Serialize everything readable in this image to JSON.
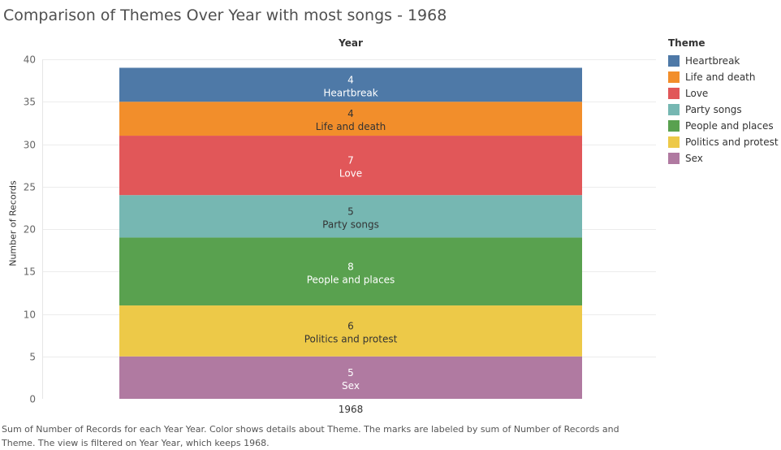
{
  "title": "Comparison of Themes Over Year with most songs - 1968",
  "caption": "Sum of Number of Records for each Year Year.  Color shows details about Theme.  The marks are labeled by sum of Number of Records and Theme. The view is filtered on Year Year, which keeps 1968.",
  "chart_data": {
    "type": "bar",
    "stacked": true,
    "column_header": "Year",
    "categories": [
      "1968"
    ],
    "ylabel": "Number of Records",
    "ylim": [
      0,
      40
    ],
    "yticks": [
      "0",
      "5",
      "10",
      "15",
      "20",
      "25",
      "30",
      "35",
      "40"
    ],
    "grid": true,
    "legend_title": "Theme",
    "legend_position": "right",
    "series": [
      {
        "name": "Heartbreak",
        "values": [
          4
        ],
        "color": "#4e79a7",
        "label_color": "#ffffff"
      },
      {
        "name": "Life and death",
        "values": [
          4
        ],
        "color": "#f28e2b",
        "label_color": "#333333"
      },
      {
        "name": "Love",
        "values": [
          7
        ],
        "color": "#e15759",
        "label_color": "#ffffff"
      },
      {
        "name": "Party songs",
        "values": [
          5
        ],
        "color": "#76b7b2",
        "label_color": "#333333"
      },
      {
        "name": "People and places",
        "values": [
          8
        ],
        "color": "#59a14f",
        "label_color": "#ffffff"
      },
      {
        "name": "Politics and protest",
        "values": [
          6
        ],
        "color": "#edc948",
        "label_color": "#333333"
      },
      {
        "name": "Sex",
        "values": [
          5
        ],
        "color": "#b07aa1",
        "label_color": "#ffffff"
      }
    ]
  }
}
